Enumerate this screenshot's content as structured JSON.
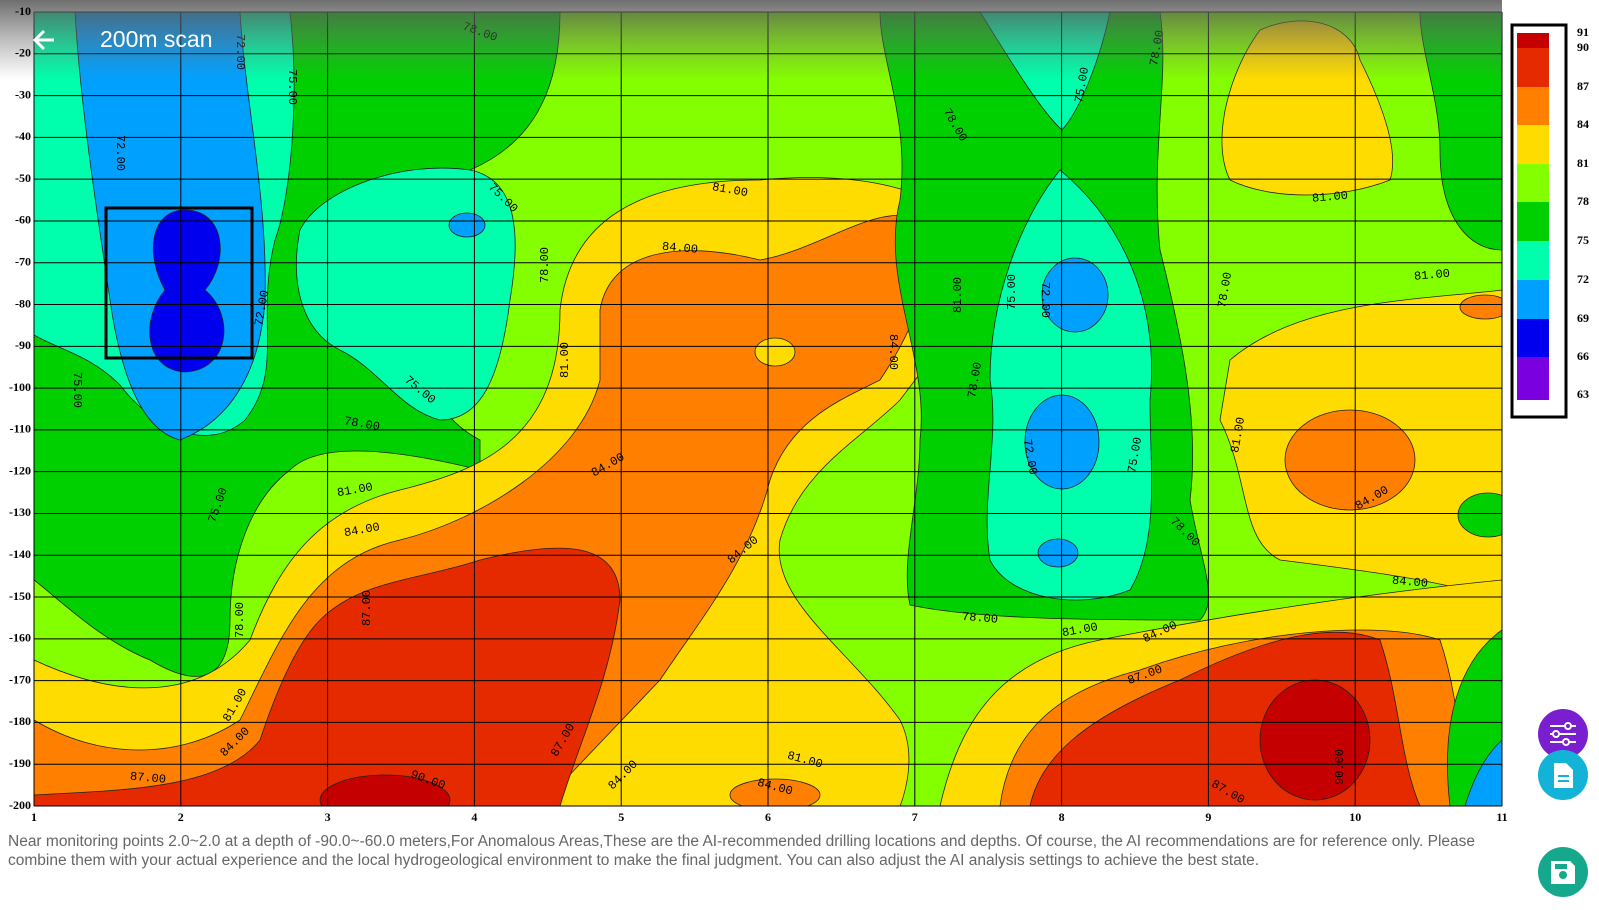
{
  "header": {
    "title": "200m scan"
  },
  "plot": {
    "xlim": [
      1,
      11
    ],
    "ylim": [
      -200,
      -10
    ],
    "xticks": [
      1,
      2,
      3,
      4,
      5,
      6,
      7,
      8,
      9,
      10,
      11
    ],
    "yticks": [
      -10,
      -20,
      -30,
      -40,
      -50,
      -60,
      -70,
      -80,
      -90,
      -100,
      -110,
      -120,
      -130,
      -140,
      -150,
      -160,
      -170,
      -180,
      -190,
      -200
    ],
    "contour_labels": [
      "78.00",
      "72.00",
      "75.00",
      "72.00",
      "75.00",
      "81.00",
      "84.00",
      "78.00",
      "81.00",
      "75.00",
      "78.00",
      "81.00",
      "84.00",
      "84.00",
      "84.00",
      "87.00",
      "72.00",
      "78.00",
      "75.00",
      "78.00",
      "81.00",
      "75.00",
      "72.00",
      "84.00",
      "78.00",
      "72.00",
      "75.00",
      "78.00",
      "81.00",
      "81.00",
      "81.00",
      "84.00",
      "78.00",
      "84.00",
      "78.00",
      "81.00",
      "84.00",
      "87.00",
      "87.00",
      "90.00",
      "84.00",
      "81.00",
      "87.00",
      "84.00",
      "81.00",
      "84.00",
      "75.00",
      "78.00",
      "87.00",
      "90.00",
      "75.00"
    ],
    "colorbar": {
      "labels": [
        91,
        90,
        87,
        84,
        81,
        78,
        75,
        72,
        69,
        66,
        63
      ],
      "colors": [
        "#c40000",
        "#e62a00",
        "#ff7f00",
        "#ffdc00",
        "#84ff00",
        "#00d000",
        "#00ffac",
        "#00a0ff",
        "#0000ee",
        "#7a00e0"
      ]
    }
  },
  "footer": {
    "text": "Near monitoring points 2.0~2.0 at a depth of -90.0~-60.0 meters,For Anomalous Areas,These are the AI-recommended drilling locations and depths. Of course, the AI recommendations are for reference only. Please combine them with your actual experience and the local hydrogeological environment to make the final judgment. You can also adjust the AI analysis settings to achieve the best state."
  }
}
